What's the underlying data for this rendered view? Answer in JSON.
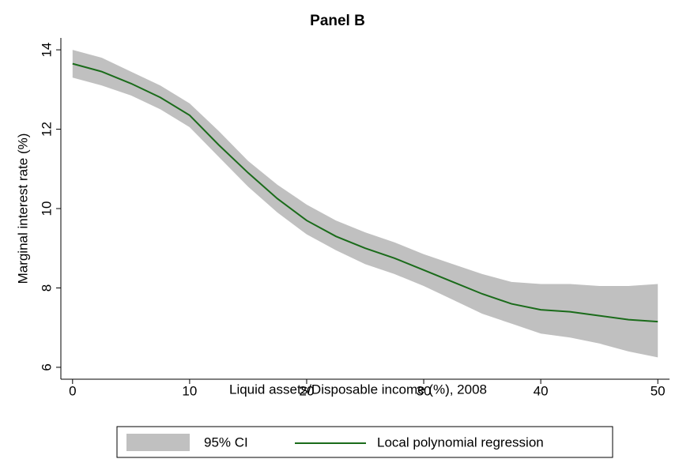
{
  "chart_data": {
    "type": "line",
    "title": "Panel B",
    "x_label": "Liquid assets/Disposable income (%), 2008",
    "y_label": "Marginal interest rate (%)",
    "x": [
      0,
      2.5,
      5,
      7.5,
      10,
      12.5,
      15,
      17.5,
      20,
      22.5,
      25,
      27.5,
      30,
      32.5,
      35,
      37.5,
      40,
      42.5,
      45,
      47.5,
      50
    ],
    "series": [
      {
        "name": "95% CI",
        "color": "#c0c0c0",
        "lower": [
          13.3,
          13.1,
          12.85,
          12.5,
          12.05,
          11.3,
          10.55,
          9.9,
          9.35,
          8.95,
          8.6,
          8.35,
          8.05,
          7.7,
          7.35,
          7.1,
          6.85,
          6.75,
          6.6,
          6.4,
          6.25
        ],
        "upper": [
          14.0,
          13.8,
          13.45,
          13.1,
          12.65,
          11.95,
          11.2,
          10.6,
          10.1,
          9.7,
          9.4,
          9.15,
          8.85,
          8.6,
          8.35,
          8.15,
          8.1,
          8.1,
          8.05,
          8.05,
          8.1
        ]
      },
      {
        "name": "Local polynomial regression",
        "color": "#1a6b1a",
        "values": [
          13.65,
          13.45,
          13.15,
          12.8,
          12.35,
          11.6,
          10.9,
          10.25,
          9.7,
          9.3,
          9.0,
          8.75,
          8.45,
          8.15,
          7.85,
          7.6,
          7.45,
          7.4,
          7.3,
          7.2,
          7.15
        ]
      }
    ],
    "xlim": [
      -1,
      51
    ],
    "ylim": [
      5.7,
      14.3
    ],
    "xticks": [
      0,
      10,
      20,
      30,
      40,
      50
    ],
    "yticks": [
      6,
      8,
      10,
      12,
      14
    ],
    "legend": "bottom"
  }
}
